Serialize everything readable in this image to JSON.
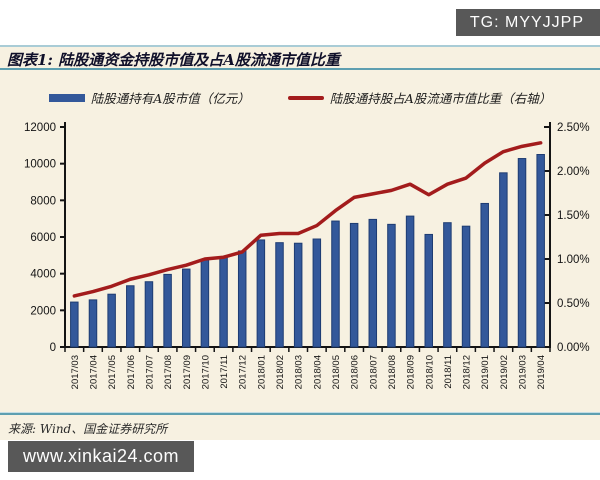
{
  "page": {
    "top_badge": "TG: MYYJJPP",
    "bottom_badge": "www.xinkai24.com"
  },
  "figure": {
    "title": "图表1: 陆股通资金持股市值及占A股流通市值比重",
    "source": "来源: Wind、国金证券研究所"
  },
  "colors": {
    "bar": "#33589a",
    "bar_stroke": "#1e3c72",
    "line": "#a31c1c",
    "axis": "#141414",
    "background": "#f7f1e1",
    "accent_border": "#5e9fb0",
    "badge_bg": "#585858"
  },
  "chart_data": {
    "type": "bar",
    "title": "陆股通资金持股市值及占A股流通市值比重",
    "grid": false,
    "legend_position": "top",
    "categories": [
      "2017/03",
      "2017/04",
      "2017/05",
      "2017/06",
      "2017/07",
      "2017/08",
      "2017/09",
      "2017/10",
      "2017/11",
      "2017/12",
      "2018/01",
      "2018/02",
      "2018/03",
      "2018/04",
      "2018/05",
      "2018/06",
      "2018/07",
      "2018/08",
      "2018/09",
      "2018/10",
      "2018/11",
      "2018/12",
      "2019/01",
      "2019/02",
      "2019/03",
      "2019/04"
    ],
    "series": [
      {
        "name": "陆股通持有A股市值（亿元）",
        "type": "bar",
        "axis": "left",
        "values": [
          2450,
          2570,
          2880,
          3340,
          3560,
          3960,
          4250,
          4780,
          4890,
          5240,
          5840,
          5690,
          5660,
          5890,
          6870,
          6740,
          6960,
          6690,
          7140,
          6140,
          6780,
          6590,
          7830,
          9500,
          10280,
          10500
        ]
      },
      {
        "name": "陆股通持股占A股流通市值比重（右轴）",
        "type": "line",
        "axis": "right",
        "values": [
          0.58,
          0.63,
          0.69,
          0.77,
          0.82,
          0.88,
          0.93,
          1.0,
          1.02,
          1.08,
          1.27,
          1.29,
          1.29,
          1.38,
          1.55,
          1.7,
          1.74,
          1.78,
          1.85,
          1.73,
          1.85,
          1.92,
          2.09,
          2.22,
          2.28,
          2.32
        ]
      }
    ],
    "left_axis": {
      "min": 0,
      "max": 12000,
      "ticks": [
        0,
        2000,
        4000,
        6000,
        8000,
        10000,
        12000
      ]
    },
    "right_axis": {
      "min": 0,
      "max": 2.5,
      "tick_labels": [
        "0.00%",
        "0.50%",
        "1.00%",
        "1.50%",
        "2.00%",
        "2.50%"
      ]
    }
  }
}
